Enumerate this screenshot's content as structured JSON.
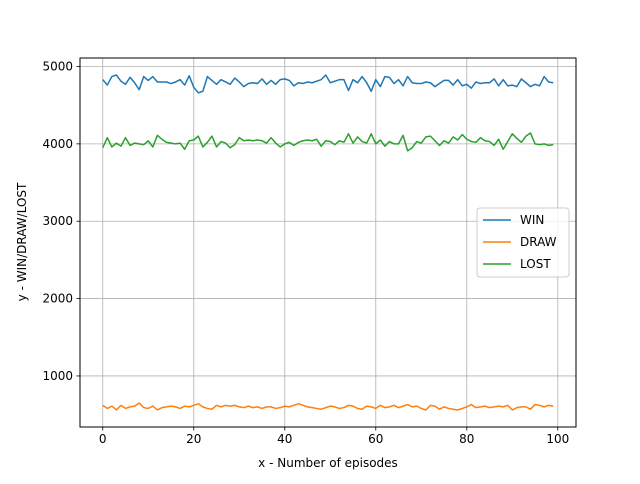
{
  "chart_data": {
    "type": "line",
    "xlabel": "x - Number of episodes",
    "ylabel": "y - WIN/DRAW/LOST",
    "xlim": [
      -5,
      104
    ],
    "ylim": [
      340,
      5110
    ],
    "xticks": [
      0,
      20,
      40,
      60,
      80,
      100
    ],
    "yticks": [
      1000,
      2000,
      3000,
      4000,
      5000
    ],
    "grid": true,
    "legend_position": "center-right",
    "series": [
      {
        "name": "WIN",
        "color": "#1f77b4",
        "values": [
          4830,
          4760,
          4870,
          4890,
          4810,
          4770,
          4860,
          4790,
          4700,
          4870,
          4820,
          4870,
          4800,
          4800,
          4800,
          4780,
          4800,
          4830,
          4760,
          4880,
          4730,
          4660,
          4680,
          4870,
          4820,
          4770,
          4830,
          4800,
          4770,
          4850,
          4800,
          4740,
          4780,
          4790,
          4780,
          4840,
          4770,
          4820,
          4770,
          4830,
          4840,
          4820,
          4750,
          4790,
          4780,
          4800,
          4790,
          4810,
          4830,
          4890,
          4790,
          4810,
          4830,
          4830,
          4690,
          4830,
          4790,
          4870,
          4790,
          4680,
          4830,
          4740,
          4870,
          4860,
          4780,
          4830,
          4750,
          4870,
          4790,
          4780,
          4780,
          4800,
          4790,
          4740,
          4780,
          4820,
          4820,
          4760,
          4830,
          4750,
          4770,
          4720,
          4800,
          4780,
          4790,
          4790,
          4840,
          4750,
          4830,
          4750,
          4760,
          4740,
          4840,
          4790,
          4740,
          4770,
          4750,
          4870,
          4800,
          4790
        ]
      },
      {
        "name": "DRAW",
        "color": "#ff7f0e",
        "values": [
          620,
          580,
          610,
          560,
          620,
          580,
          600,
          610,
          650,
          590,
          580,
          610,
          560,
          590,
          600,
          610,
          600,
          580,
          610,
          600,
          620,
          640,
          600,
          580,
          570,
          620,
          600,
          620,
          610,
          620,
          600,
          590,
          610,
          590,
          600,
          580,
          600,
          600,
          580,
          590,
          610,
          600,
          620,
          640,
          620,
          600,
          590,
          580,
          570,
          590,
          610,
          600,
          580,
          590,
          620,
          610,
          580,
          570,
          610,
          600,
          580,
          620,
          590,
          600,
          620,
          590,
          610,
          630,
          600,
          610,
          580,
          560,
          620,
          610,
          570,
          600,
          580,
          570,
          560,
          580,
          600,
          630,
          590,
          600,
          610,
          590,
          600,
          610,
          600,
          620,
          560,
          590,
          600,
          600,
          570,
          630,
          620,
          600,
          620,
          610
        ]
      },
      {
        "name": "LOST",
        "color": "#2ca02c",
        "values": [
          3950,
          4080,
          3960,
          4010,
          3970,
          4080,
          3980,
          4010,
          4000,
          3990,
          4040,
          3960,
          4110,
          4060,
          4020,
          4010,
          4000,
          4010,
          3930,
          4040,
          4050,
          4100,
          3960,
          4020,
          4100,
          3960,
          4030,
          4010,
          3950,
          3990,
          4080,
          4040,
          4050,
          4040,
          4050,
          4040,
          4010,
          4080,
          4010,
          3960,
          4000,
          4020,
          3980,
          4020,
          4040,
          4050,
          4040,
          4060,
          3970,
          4040,
          4030,
          3990,
          4040,
          4020,
          4130,
          4010,
          4090,
          4030,
          4010,
          4130,
          4000,
          4050,
          3970,
          4030,
          4000,
          4000,
          4110,
          3910,
          3950,
          4030,
          4010,
          4090,
          4100,
          4040,
          3980,
          4040,
          4010,
          4090,
          4050,
          4120,
          4060,
          4030,
          4020,
          4080,
          4040,
          4030,
          3980,
          4060,
          3930,
          4030,
          4130,
          4070,
          4020,
          4100,
          4140,
          4000,
          3990,
          4000,
          3980,
          3990
        ]
      }
    ]
  }
}
